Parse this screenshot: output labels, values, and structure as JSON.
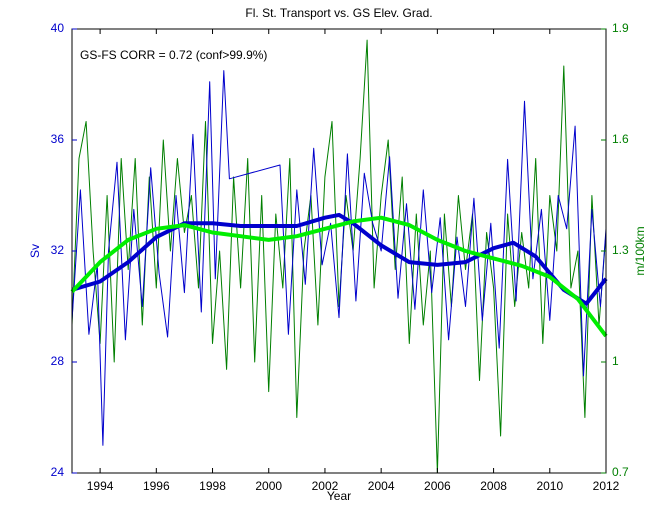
{
  "chart_data": {
    "type": "line",
    "title": "Fl. St. Transport vs. GS Elev. Grad.",
    "annotation": "GS-FS CORR = 0.72 (conf>99.9%)",
    "xlabel": "Year",
    "ylabel": "Sv",
    "y2label": "m/100km",
    "xlim": [
      1993,
      2012
    ],
    "xticks": [
      1994,
      1996,
      1998,
      2000,
      2002,
      2004,
      2006,
      2008,
      2010,
      2012
    ],
    "ylim": [
      24,
      40
    ],
    "yticks": [
      24,
      28,
      32,
      36,
      40
    ],
    "ylabel_color": "#0000cc",
    "y2lim": [
      0.7,
      1.9
    ],
    "y2ticks": [
      {
        "value": 0.7,
        "label": "0.7"
      },
      1,
      1.3,
      1.6,
      1.9
    ],
    "y2label_color": "#007f00",
    "series": [
      {
        "color": "#007f00",
        "axis": "y2",
        "line_width": 1,
        "x": [
          1993,
          1993.25,
          1993.5,
          1993.75,
          1994,
          1994.25,
          1994.5,
          1994.75,
          1995,
          1995.25,
          1995.5,
          1995.75,
          1996,
          1996.25,
          1996.5,
          1996.75,
          1997,
          1997.25,
          1997.5,
          1997.75,
          1998,
          1998.25,
          1998.5,
          1998.75,
          1999,
          1999.25,
          1999.5,
          1999.75,
          2000,
          2000.25,
          2000.5,
          2000.75,
          2001,
          2001.25,
          2001.5,
          2001.75,
          2002,
          2002.25,
          2002.5,
          2002.75,
          2003,
          2003.25,
          2003.5,
          2003.75,
          2004,
          2004.25,
          2004.5,
          2004.75,
          2005,
          2005.25,
          2005.5,
          2005.75,
          2006,
          2006.25,
          2006.5,
          2006.75,
          2007,
          2007.25,
          2007.5,
          2007.75,
          2008,
          2008.25,
          2008.5,
          2008.75,
          2009,
          2009.25,
          2009.5,
          2009.75,
          2010,
          2010.25,
          2010.5,
          2010.75,
          2011,
          2011.25,
          2011.5,
          2011.75,
          2012
        ],
        "values": [
          1.1,
          1.55,
          1.65,
          1.3,
          1.05,
          1.45,
          1.0,
          1.55,
          1.25,
          1.55,
          1.1,
          1.5,
          1.2,
          1.6,
          1.3,
          1.55,
          1.35,
          1.45,
          1.2,
          1.65,
          1.05,
          1.3,
          0.98,
          1.5,
          1.2,
          1.55,
          1.0,
          1.45,
          0.92,
          1.4,
          1.2,
          1.55,
          0.85,
          1.3,
          1.45,
          1.1,
          1.5,
          1.65,
          1.15,
          1.45,
          1.3,
          1.55,
          1.87,
          1.2,
          1.45,
          1.6,
          1.25,
          1.5,
          1.05,
          1.4,
          1.1,
          1.3,
          0.7,
          1.4,
          1.15,
          1.45,
          1.25,
          1.4,
          0.95,
          1.35,
          1.2,
          0.8,
          1.4,
          1.15,
          1.35,
          1.2,
          1.55,
          1.05,
          1.45,
          1.3,
          1.8,
          1.2,
          1.3,
          0.85,
          1.45,
          1.1,
          1.35
        ]
      },
      {
        "color": "#0000cc",
        "line_width": 1,
        "x": [
          1993,
          1993.3,
          1993.6,
          1993.9,
          1994.1,
          1994.3,
          1994.6,
          1994.9,
          1995.2,
          1995.5,
          1995.8,
          1996.1,
          1996.4,
          1996.7,
          1997.0,
          1997.3,
          1997.6,
          1997.9,
          1998.1,
          1998.4,
          1998.6,
          2000.4,
          2000.7,
          2001.0,
          2001.3,
          2001.6,
          2001.9,
          2002.2,
          2002.5,
          2002.8,
          2003.1,
          2003.4,
          2003.7,
          2004.0,
          2004.3,
          2004.6,
          2004.9,
          2005.2,
          2005.5,
          2005.8,
          2006.1,
          2006.4,
          2006.7,
          2007.0,
          2007.3,
          2007.6,
          2007.9,
          2008.2,
          2008.5,
          2008.8,
          2009.1,
          2009.4,
          2009.7,
          2010.0,
          2010.3,
          2010.6,
          2010.9,
          2011.2,
          2011.5,
          2011.8,
          2012
        ],
        "values": [
          29.5,
          34.2,
          29.0,
          31.5,
          25.0,
          32.0,
          35.2,
          28.8,
          33.5,
          30.0,
          35.0,
          31.2,
          28.9,
          34.0,
          30.5,
          36.2,
          29.8,
          38.1,
          31.0,
          38.5,
          34.6,
          35.1,
          29.0,
          34.2,
          30.8,
          35.7,
          31.5,
          33.0,
          29.6,
          35.5,
          30.2,
          34.8,
          33.0,
          32.0,
          35.4,
          30.3,
          33.7,
          29.9,
          34.2,
          30.5,
          33.2,
          28.8,
          32.5,
          30.0,
          33.9,
          29.5,
          33.0,
          28.5,
          35.3,
          30.2,
          37.4,
          31.0,
          33.5,
          29.5,
          34.0,
          32.8,
          36.5,
          27.5,
          33.5,
          30.0,
          32.8
        ]
      },
      {
        "color": "#0000cc",
        "line_width": 4,
        "x": [
          1993,
          1994,
          1995,
          1996,
          1997,
          1998,
          1999,
          2000,
          2001,
          2002,
          2002.5,
          2003,
          2004,
          2005,
          2006,
          2007,
          2008,
          2008.7,
          2009.5,
          2010.5,
          2011.3,
          2012
        ],
        "values": [
          30.6,
          30.9,
          31.6,
          32.5,
          33.0,
          33.0,
          32.9,
          32.9,
          32.9,
          33.2,
          33.3,
          33.0,
          32.2,
          31.6,
          31.5,
          31.6,
          32.1,
          32.3,
          31.8,
          30.6,
          30.1,
          31.0
        ]
      },
      {
        "color": "#00ee00",
        "axis": "y2",
        "line_width": 4,
        "x": [
          1993,
          1994,
          1995,
          1996,
          1997,
          1998,
          1999,
          2000,
          2001,
          2002,
          2003,
          2004,
          2005,
          2006,
          2007,
          2008,
          2009,
          2010,
          2011,
          2012
        ],
        "values": [
          1.19,
          1.27,
          1.33,
          1.36,
          1.37,
          1.35,
          1.34,
          1.33,
          1.34,
          1.36,
          1.38,
          1.39,
          1.37,
          1.33,
          1.3,
          1.28,
          1.26,
          1.23,
          1.17,
          1.07
        ]
      }
    ]
  }
}
